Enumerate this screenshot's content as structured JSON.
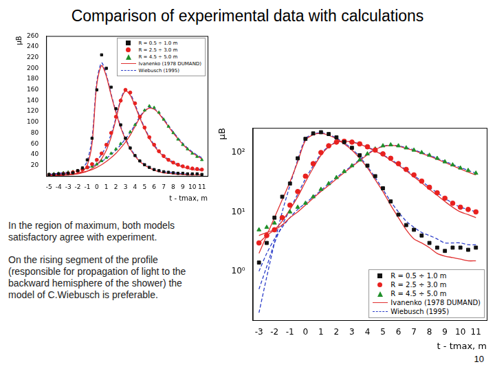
{
  "title": "Comparison of experimental data with calculations",
  "text": [
    "In the region of maximum, both models satisfactory agree with experiment.",
    "On the rising segment of the profile (responsible for propagation of light to the backward hemisphere of the shower) the model of C.Wiebusch is preferable."
  ],
  "page_number": 10,
  "chart_data": [
    {
      "type": "line",
      "x_label": "t - tmax, m",
      "y_label": "μB",
      "grid": false,
      "legend": "upper right",
      "x": [
        -5,
        -4.5,
        -4,
        -3.5,
        -3,
        -2.5,
        -2,
        -1.5,
        -1,
        -0.5,
        0,
        0.5,
        1,
        1.5,
        2,
        2.5,
        3,
        3.5,
        4,
        4.5,
        5,
        5.5,
        6,
        6.5,
        7,
        7.5,
        8,
        8.5,
        9,
        9.5,
        10,
        10.5,
        11
      ],
      "xlim": [
        -5.3,
        11.6
      ],
      "xticks": [
        -5,
        -4,
        -3,
        -2,
        -1,
        0,
        1,
        2,
        3,
        4,
        5,
        6,
        7,
        8,
        9,
        10,
        11
      ],
      "ylim": [
        0,
        260
      ],
      "yticks": [
        20,
        40,
        60,
        80,
        100,
        120,
        140,
        160,
        180,
        200,
        220,
        240,
        260
      ],
      "series": [
        {
          "name": "R = 0.5 ÷ 1.0 m",
          "type": "scatter",
          "marker": "square",
          "color": "#111111",
          "values": [
            3,
            3,
            4,
            4,
            5,
            6,
            10,
            15,
            30,
            70,
            160,
            225,
            200,
            165,
            125,
            95,
            70,
            52,
            38,
            28,
            21,
            16,
            12,
            10,
            8,
            7,
            6,
            5,
            5,
            4,
            4,
            4,
            3
          ]
        },
        {
          "name": "R = 2.5 ÷ 3.0 m",
          "type": "scatter",
          "marker": "circle",
          "color": "#e8211f",
          "values": [
            2,
            2,
            3,
            4,
            5,
            7,
            9,
            12,
            16,
            22,
            30,
            42,
            58,
            80,
            110,
            140,
            160,
            155,
            135,
            110,
            90,
            72,
            58,
            46,
            37,
            30,
            25,
            21,
            18,
            16,
            14,
            13,
            12
          ]
        },
        {
          "name": "R = 4.5 ÷ 5.0 m",
          "type": "scatter",
          "marker": "triangle",
          "color": "#1f8f2a",
          "values": [
            3,
            4,
            5,
            6,
            7,
            8,
            10,
            12,
            15,
            18,
            22,
            28,
            34,
            42,
            50,
            60,
            70,
            82,
            95,
            110,
            122,
            130,
            127,
            118,
            105,
            92,
            80,
            68,
            58,
            50,
            42,
            36,
            30
          ]
        },
        {
          "name": "Ivanenko (1978 DUMAND)",
          "type": "line",
          "line_style": "solid",
          "color": "#e03030",
          "values": [
            [
              1,
              1,
              1,
              2,
              2,
              3,
              5,
              9,
              20,
              60,
              170,
              205,
              185,
              150,
              118,
              90,
              68,
              50,
              37,
              27,
              20,
              15,
              11,
              8,
              6,
              5,
              4,
              3,
              3,
              2,
              2,
              2,
              2
            ],
            [
              1,
              1,
              1,
              2,
              2,
              3,
              4,
              6,
              9,
              14,
              21,
              32,
              48,
              72,
              105,
              140,
              158,
              150,
              130,
              108,
              88,
              70,
              56,
              45,
              36,
              29,
              24,
              20,
              17,
              14,
              12,
              11,
              10
            ],
            [
              1,
              1,
              2,
              2,
              3,
              4,
              5,
              7,
              9,
              12,
              16,
              21,
              27,
              34,
              42,
              52,
              63,
              76,
              92,
              108,
              120,
              126,
              124,
              116,
              104,
              92,
              80,
              69,
              59,
              50,
              43,
              37,
              32
            ]
          ]
        },
        {
          "name": "Wiebusch (1995)",
          "type": "line",
          "line_style": "dashed",
          "color": "#2a3cc8",
          "values": [
            [
              3,
              3,
              4,
              4,
              5,
              6,
              9,
              14,
              28,
              70,
              175,
              210,
              188,
              152,
              120,
              92,
              70,
              52,
              39,
              29,
              22,
              17,
              13,
              10,
              8,
              7,
              6,
              5,
              4,
              4,
              3,
              3,
              3
            ],
            [
              2,
              3,
              3,
              4,
              5,
              6,
              8,
              11,
              15,
              21,
              29,
              40,
              56,
              78,
              108,
              142,
              160,
              153,
              133,
              110,
              90,
              72,
              58,
              47,
              38,
              31,
              26,
              22,
              19,
              16,
              14,
              13,
              12
            ],
            [
              3,
              4,
              5,
              6,
              7,
              8,
              10,
              12,
              15,
              18,
              22,
              27,
              33,
              40,
              48,
              58,
              69,
              81,
              95,
              110,
              121,
              127,
              125,
              117,
              106,
              94,
              82,
              71,
              61,
              52,
              45,
              39,
              34
            ]
          ]
        }
      ]
    },
    {
      "type": "line",
      "log": "y",
      "x_label": "t - tmax, m",
      "y_label": "μB",
      "grid": false,
      "legend": "lower right",
      "x": [
        -3,
        -2.5,
        -2,
        -1.5,
        -1,
        -0.5,
        0,
        0.5,
        1,
        1.5,
        2,
        2.5,
        3,
        3.5,
        4,
        4.5,
        5,
        5.5,
        6,
        6.5,
        7,
        7.5,
        8,
        8.5,
        9,
        9.5,
        10,
        10.5,
        11
      ],
      "xlim": [
        -3.4,
        11.7
      ],
      "xticks": [
        -3,
        -2,
        -1,
        0,
        1,
        2,
        3,
        4,
        5,
        6,
        7,
        8,
        9,
        10,
        11
      ],
      "ylim": [
        0.15,
        260
      ],
      "yticks": [
        {
          "value": 1,
          "label": "10⁰"
        },
        {
          "value": 10,
          "label": "10¹"
        },
        {
          "value": 100,
          "label": "10²"
        }
      ],
      "series": [
        {
          "name": "R = 0.5 ÷ 1.0 m",
          "type": "scatter",
          "marker": "square",
          "color": "#111111",
          "values": [
            1.4,
            3,
            8,
            18,
            30,
            80,
            170,
            210,
            220,
            205,
            180,
            150,
            120,
            90,
            60,
            40,
            25,
            15,
            9,
            6,
            5,
            4,
            3,
            2.5,
            2.2,
            2.5,
            2.5,
            2.3,
            2.5
          ]
        },
        {
          "name": "R = 2.5 ÷ 3.0 m",
          "type": "scatter",
          "marker": "circle",
          "color": "#e8211f",
          "values": [
            3,
            4,
            5,
            8,
            13,
            22,
            40,
            65,
            100,
            130,
            150,
            155,
            150,
            140,
            125,
            110,
            95,
            80,
            65,
            52,
            42,
            33,
            26,
            21,
            17,
            14,
            12,
            11,
            10
          ]
        },
        {
          "name": "R = 4.5 ÷ 5.0 m",
          "type": "scatter",
          "marker": "triangle",
          "color": "#1f8f2a",
          "values": [
            5,
            5.5,
            6.5,
            8,
            10,
            12,
            14,
            18,
            24,
            30,
            38,
            48,
            60,
            75,
            95,
            115,
            130,
            135,
            130,
            120,
            110,
            100,
            90,
            80,
            70,
            62,
            55,
            50,
            45
          ]
        },
        {
          "name": "Ivanenko (1978 DUMAND)",
          "type": "line",
          "line_style": "solid",
          "color": "#e03030",
          "values": [
            [
              2,
              4,
              8,
              16,
              32,
              70,
              160,
              200,
              210,
              195,
              170,
              140,
              110,
              80,
              55,
              35,
              22,
              13,
              8,
              5,
              3.5,
              3,
              2.5,
              2,
              1.8,
              1.7,
              1.6,
              1.5,
              1.5
            ],
            [
              3,
              4,
              5,
              7,
              11,
              18,
              32,
              55,
              90,
              125,
              148,
              155,
              150,
              138,
              122,
              106,
              90,
              75,
              61,
              49,
              39,
              31,
              24,
              19,
              15,
              12,
              10,
              9,
              8
            ],
            [
              4,
              4.5,
              5,
              6,
              8,
              10,
              13,
              17,
              22,
              28,
              36,
              46,
              58,
              73,
              92,
              112,
              127,
              132,
              128,
              118,
              108,
              97,
              87,
              77,
              68,
              60,
              53,
              47,
              42
            ]
          ]
        },
        {
          "name": "Wiebusch (1995)",
          "type": "line",
          "line_style": "dashed",
          "color": "#2a3cc8",
          "values": [
            [
              0.2,
              0.8,
              3,
              10,
              28,
              75,
              170,
              205,
              215,
              200,
              175,
              145,
              115,
              85,
              58,
              38,
              24,
              15,
              10,
              7,
              5.5,
              4.5,
              4,
              3.5,
              3,
              3,
              3,
              2.8,
              2.8
            ],
            [
              0.5,
              1.2,
              3,
              6,
              11,
              20,
              36,
              60,
              95,
              128,
              150,
              157,
              152,
              140,
              124,
              108,
              92,
              77,
              63,
              51,
              41,
              33,
              26,
              21,
              17,
              14,
              12,
              11,
              10
            ],
            [
              1,
              2,
              3.5,
              5.5,
              8,
              11,
              14,
              18,
              23,
              30,
              38,
              48,
              60,
              76,
              95,
              114,
              128,
              133,
              130,
              121,
              111,
              100,
              90,
              80,
              71,
              63,
              56,
              50,
              45
            ]
          ]
        }
      ]
    }
  ]
}
